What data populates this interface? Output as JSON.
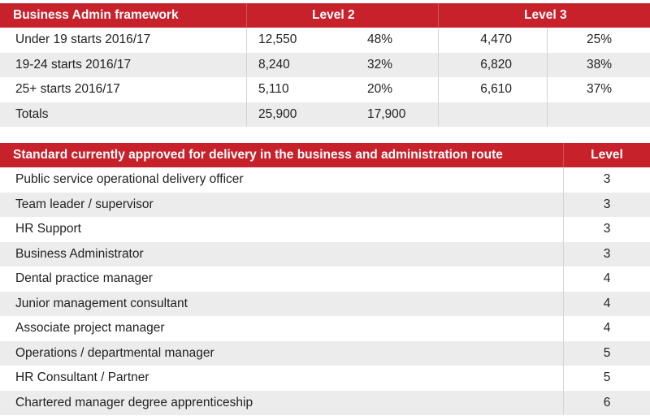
{
  "framework": {
    "header": {
      "title": "Business Admin framework",
      "level2": "Level 2",
      "level3": "Level 3"
    },
    "rows": [
      {
        "label": "Under 19 starts 2016/17",
        "l2_count": "12,550",
        "l2_pct": "48%",
        "l3_count": "4,470",
        "l3_pct": "25%"
      },
      {
        "label": "19-24 starts 2016/17",
        "l2_count": "8,240",
        "l2_pct": "32%",
        "l3_count": "6,820",
        "l3_pct": "38%"
      },
      {
        "label": "25+  starts 2016/17",
        "l2_count": "5,110",
        "l2_pct": "20%",
        "l3_count": "6,610",
        "l3_pct": "37%"
      },
      {
        "label": "Totals",
        "l2_count": "25,900",
        "l2_pct": "17,900",
        "l3_count": "",
        "l3_pct": ""
      }
    ]
  },
  "standards": {
    "header": {
      "title": "Standard currently approved for delivery in the business and administration route",
      "level": "Level"
    },
    "rows": [
      {
        "name": "Public service operational delivery officer",
        "level": "3"
      },
      {
        "name": "Team leader / supervisor",
        "level": "3"
      },
      {
        "name": "HR Support",
        "level": "3"
      },
      {
        "name": "Business Administrator",
        "level": "3"
      },
      {
        "name": "Dental practice manager",
        "level": "4"
      },
      {
        "name": "Junior management consultant",
        "level": "4"
      },
      {
        "name": "Associate project manager",
        "level": "4"
      },
      {
        "name": "Operations / departmental manager",
        "level": "5"
      },
      {
        "name": "HR Consultant / Partner",
        "level": "5"
      },
      {
        "name": "Chartered manager degree apprenticeship",
        "level": "6"
      }
    ]
  },
  "colors": {
    "header_red": "#c7212b",
    "row_alt_gray": "#ececec"
  }
}
